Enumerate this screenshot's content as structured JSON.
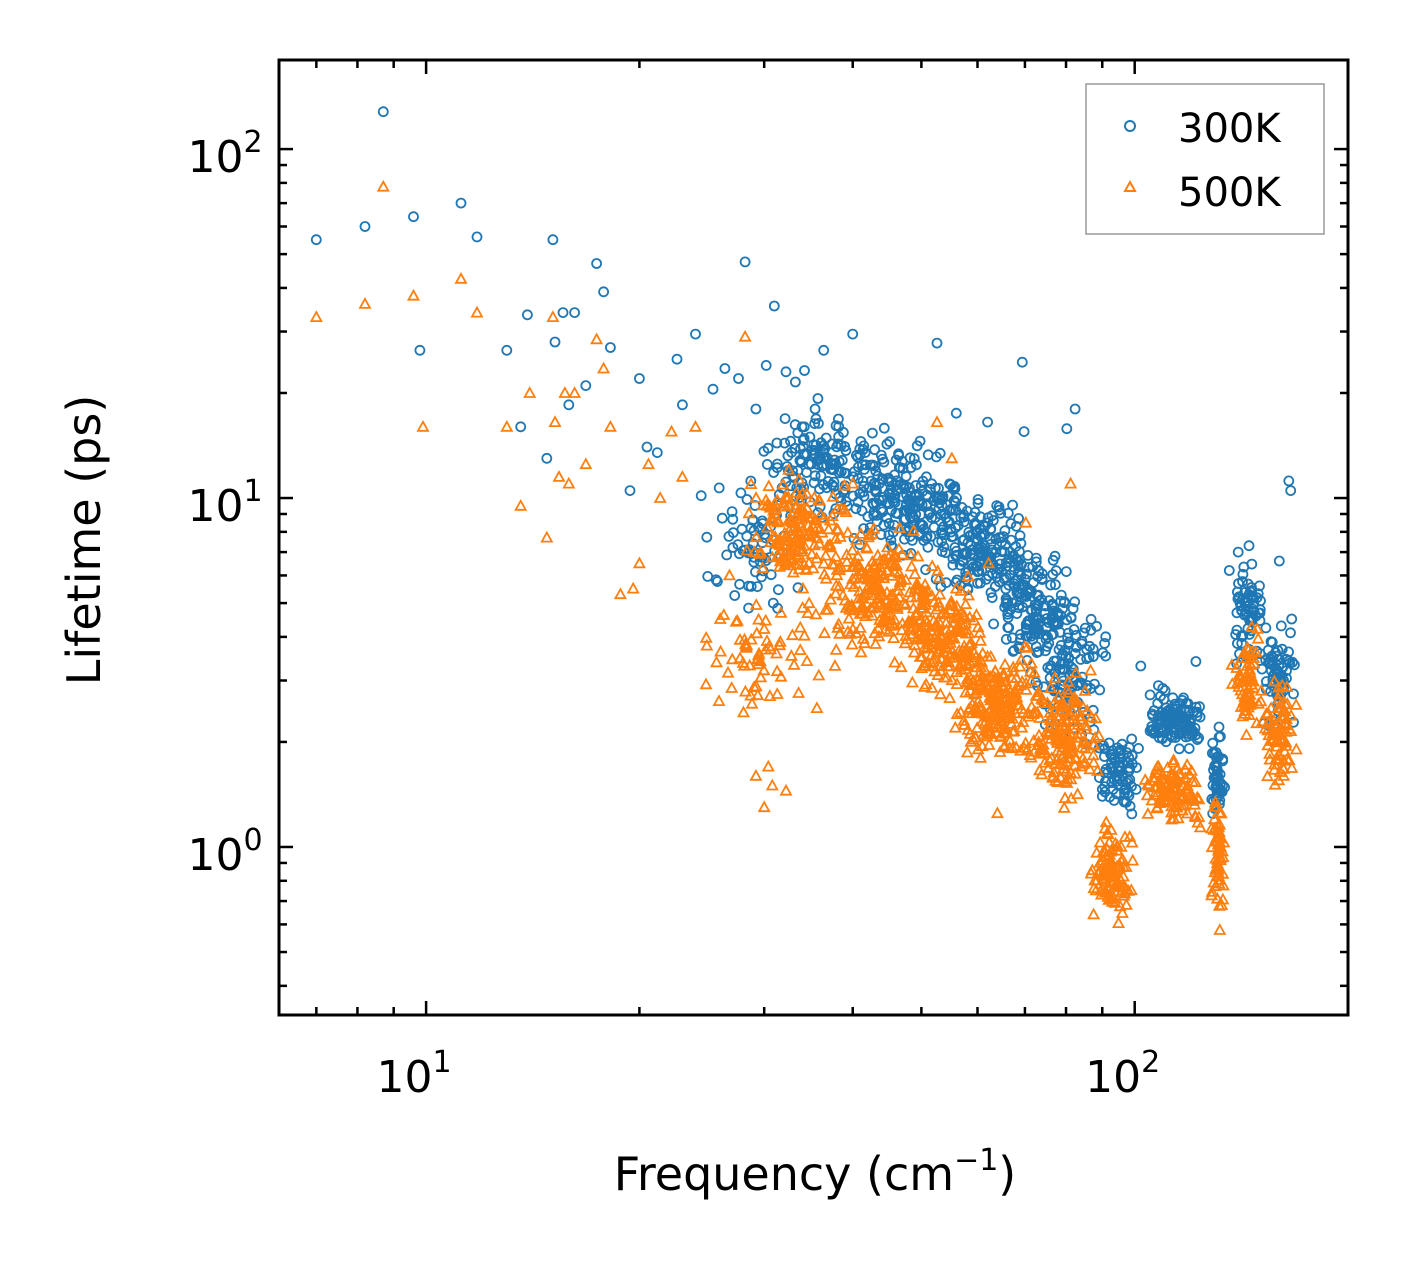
{
  "chart_data": {
    "type": "scatter",
    "xscale": "log",
    "yscale": "log",
    "xlim": [
      6.2,
      200
    ],
    "ylim": [
      0.33,
      180
    ],
    "xlabel": "Frequency (cm",
    "xlabel_sup": "−1",
    "xlabel_end": ")",
    "ylabel": "Lifetime (ps)",
    "x_ticks": [
      {
        "value": 10,
        "base": "10",
        "exp": "1"
      },
      {
        "value": 100,
        "base": "10",
        "exp": "2"
      }
    ],
    "y_ticks": [
      {
        "value": 1,
        "base": "10",
        "exp": "0"
      },
      {
        "value": 10,
        "base": "10",
        "exp": "1"
      },
      {
        "value": 100,
        "base": "10",
        "exp": "2"
      }
    ],
    "legend": {
      "position": "top-right"
    },
    "series": [
      {
        "name": "300K",
        "marker": "circle",
        "color": "#1f77b4",
        "points": [
          [
            7,
            55
          ],
          [
            8.2,
            60
          ],
          [
            8.7,
            128
          ],
          [
            9.6,
            64
          ],
          [
            9.8,
            26.5
          ],
          [
            11.2,
            70
          ],
          [
            11.8,
            56
          ],
          [
            13,
            26.5
          ],
          [
            13.6,
            16
          ],
          [
            13.9,
            33.5
          ],
          [
            14.8,
            13
          ],
          [
            15.1,
            55
          ],
          [
            15.2,
            28
          ],
          [
            15.6,
            34
          ],
          [
            15.9,
            18.5
          ],
          [
            16.2,
            34
          ],
          [
            16.8,
            21
          ],
          [
            17.4,
            47
          ],
          [
            17.8,
            39
          ],
          [
            18.2,
            27
          ],
          [
            19.4,
            10.5
          ],
          [
            20,
            22
          ],
          [
            20.5,
            14
          ],
          [
            21.2,
            13.5
          ],
          [
            22.6,
            25
          ],
          [
            23,
            18.5
          ],
          [
            24,
            29.5
          ],
          [
            25.4,
            20.5
          ],
          [
            26.4,
            23.5
          ],
          [
            27.6,
            22
          ],
          [
            28.2,
            47.5
          ],
          [
            29.2,
            18
          ],
          [
            30.2,
            24
          ],
          [
            31,
            35.5
          ],
          [
            32.2,
            23
          ],
          [
            33.2,
            21.5
          ],
          [
            34.2,
            23.2
          ],
          [
            35.4,
            18
          ],
          [
            36.4,
            26.5
          ],
          [
            38.2,
            15
          ],
          [
            40,
            29.5
          ],
          [
            52.6,
            27.8
          ],
          [
            56,
            17.5
          ],
          [
            62,
            16.5
          ],
          [
            69.4,
            24.5
          ],
          [
            69.8,
            15.5
          ],
          [
            80.2,
            15.8
          ],
          [
            82.4,
            18
          ],
          [
            165,
            11.2
          ],
          [
            166,
            10.5
          ],
          [
            145,
            7.3
          ],
          [
            140,
            7
          ],
          [
            136,
            6.2
          ],
          [
            150,
            5.6
          ],
          [
            160,
            6.6
          ],
          [
            122,
            3.4
          ],
          [
            108,
            2.9
          ],
          [
            102,
            3.3
          ]
        ],
        "clusters": [
          {
            "xr": [
              24,
              34
            ],
            "yr": [
              4,
              13
            ],
            "n": 70
          },
          {
            "xr": [
              29,
              45
            ],
            "yr": [
              8,
              20
            ],
            "n": 150
          },
          {
            "xr": [
              40,
              58
            ],
            "yr": [
              6,
              16
            ],
            "n": 200
          },
          {
            "xr": [
              50,
              72
            ],
            "yr": [
              4.5,
              11
            ],
            "n": 170
          },
          {
            "xr": [
              62,
              82
            ],
            "yr": [
              3,
              8
            ],
            "n": 150
          },
          {
            "xr": [
              72,
              92
            ],
            "yr": [
              1.8,
              6
            ],
            "n": 120
          },
          {
            "xr": [
              88,
              102
            ],
            "yr": [
              1.1,
              2.6
            ],
            "n": 80
          },
          {
            "xr": [
              103,
              125
            ],
            "yr": [
              1.8,
              3.0
            ],
            "n": 130
          },
          {
            "xr": [
              128,
              134
            ],
            "yr": [
              1.0,
              2.6
            ],
            "n": 50
          },
          {
            "xr": [
              137,
              152
            ],
            "yr": [
              3.0,
              7.0
            ],
            "n": 70
          },
          {
            "xr": [
              150,
              170
            ],
            "yr": [
              2.0,
              5.0
            ],
            "n": 70
          }
        ]
      },
      {
        "name": "500K",
        "marker": "triangle",
        "color": "#ff7f0e",
        "points": [
          [
            7,
            33
          ],
          [
            8.2,
            36
          ],
          [
            8.7,
            78
          ],
          [
            9.6,
            38
          ],
          [
            9.9,
            16
          ],
          [
            11.2,
            42.5
          ],
          [
            11.8,
            34
          ],
          [
            13,
            16
          ],
          [
            13.6,
            9.5
          ],
          [
            14,
            20
          ],
          [
            14.8,
            7.7
          ],
          [
            15.1,
            33
          ],
          [
            15.2,
            16.5
          ],
          [
            15.4,
            11.5
          ],
          [
            15.7,
            20
          ],
          [
            15.9,
            11
          ],
          [
            16.2,
            20
          ],
          [
            16.8,
            12.5
          ],
          [
            17.4,
            28.5
          ],
          [
            17.8,
            23.5
          ],
          [
            18.2,
            16
          ],
          [
            18.8,
            5.3
          ],
          [
            19.6,
            5.5
          ],
          [
            20,
            6.5
          ],
          [
            20.6,
            12.5
          ],
          [
            21.4,
            10
          ],
          [
            22.2,
            15.5
          ],
          [
            23,
            11.5
          ],
          [
            24,
            16
          ],
          [
            26,
            4.5
          ],
          [
            26.8,
            6
          ],
          [
            28.2,
            29
          ],
          [
            29.2,
            1.6
          ],
          [
            30,
            1.3
          ],
          [
            30.4,
            1.7
          ],
          [
            30.8,
            1.5
          ],
          [
            32.2,
            1.45
          ],
          [
            35.6,
            2.5
          ],
          [
            40,
            11
          ],
          [
            52.6,
            16.5
          ],
          [
            55.2,
            13
          ],
          [
            62.2,
            6.5
          ],
          [
            64,
            1.25
          ],
          [
            70.2,
            8.5
          ],
          [
            81.2,
            11
          ]
        ],
        "clusters": [
          {
            "xr": [
              24,
              38
            ],
            "yr": [
              2.2,
              6
            ],
            "n": 70
          },
          {
            "xr": [
              28,
              40
            ],
            "yr": [
              5,
              13
            ],
            "n": 170
          },
          {
            "xr": [
              36,
              52
            ],
            "yr": [
              3.2,
              9
            ],
            "n": 220
          },
          {
            "xr": [
              46,
              62
            ],
            "yr": [
              2.5,
              6.5
            ],
            "n": 200
          },
          {
            "xr": [
              55,
              75
            ],
            "yr": [
              1.6,
              4.2
            ],
            "n": 220
          },
          {
            "xr": [
              70,
              90
            ],
            "yr": [
              1.2,
              3.6
            ],
            "n": 160
          },
          {
            "xr": [
              86,
              100
            ],
            "yr": [
              0.55,
              1.3
            ],
            "n": 110
          },
          {
            "xr": [
              103,
              125
            ],
            "yr": [
              1.1,
              1.9
            ],
            "n": 110
          },
          {
            "xr": [
              128,
              134
            ],
            "yr": [
              0.56,
              1.6
            ],
            "n": 60
          },
          {
            "xr": [
              137,
              152
            ],
            "yr": [
              1.9,
              4.5
            ],
            "n": 70
          },
          {
            "xr": [
              150,
              170
            ],
            "yr": [
              1.3,
              3.5
            ],
            "n": 80
          }
        ]
      }
    ]
  }
}
